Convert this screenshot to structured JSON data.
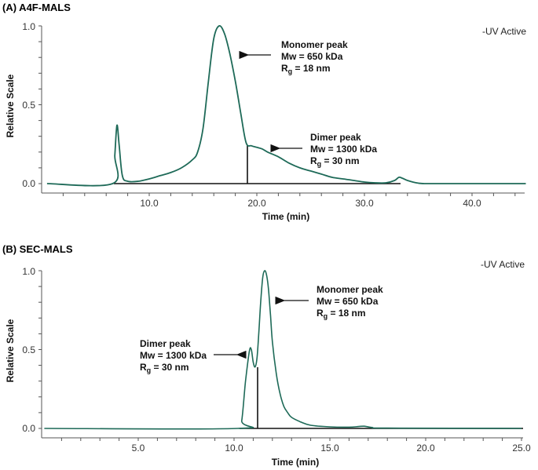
{
  "chart_data": [
    {
      "type": "line",
      "title": "(A) A4F-MALS",
      "xlabel": "Time (min)",
      "ylabel": "Relative Scale",
      "xlim": [
        0,
        45
      ],
      "ylim": [
        0,
        1.0
      ],
      "xticks": [
        "10.0",
        "20.0",
        "30.0",
        "40.0"
      ],
      "yticks": [
        "0.0",
        "0.5",
        "1.0"
      ],
      "grid": false,
      "legend": "-UV Active",
      "line_color": "#1e6a58",
      "series": [
        {
          "name": "Relative Scale",
          "x": [
            0.5,
            6.6,
            6.8,
            7.0,
            7.2,
            7.5,
            8.0,
            9.0,
            10.0,
            11.0,
            12.0,
            13.0,
            14.0,
            14.5,
            15.0,
            15.5,
            16.0,
            16.5,
            17.0,
            17.5,
            18.0,
            18.5,
            19.0,
            19.5,
            20.0,
            20.5,
            21.0,
            22.0,
            23.0,
            24.0,
            25.0,
            26.0,
            27.0,
            28.0,
            29.0,
            30.0,
            31.0,
            32.0,
            32.8,
            33.2,
            33.5,
            34.0,
            35.0,
            36.0,
            40.0,
            45.0
          ],
          "y": [
            0.0,
            0.0,
            0.18,
            0.37,
            0.25,
            0.05,
            0.015,
            0.015,
            0.03,
            0.05,
            0.07,
            0.1,
            0.15,
            0.2,
            0.35,
            0.65,
            0.92,
            1.0,
            0.95,
            0.82,
            0.65,
            0.45,
            0.26,
            0.24,
            0.23,
            0.22,
            0.2,
            0.17,
            0.13,
            0.1,
            0.08,
            0.06,
            0.04,
            0.03,
            0.02,
            0.01,
            0.005,
            0.005,
            0.02,
            0.04,
            0.035,
            0.02,
            0.003,
            0.0,
            0.0,
            0.0
          ]
        }
      ],
      "annotations": [
        {
          "lines": [
            "Monomer peak",
            "Mw = 650 kDa",
            "Rg = 18 nm"
          ],
          "arrow_to_time": 18.5,
          "arrow_to_y": 0.81
        },
        {
          "lines": [
            "Dimer peak",
            "Mw = 1300 kDa",
            "Rg = 30 nm"
          ],
          "arrow_to_time": 21.0,
          "arrow_to_y": 0.23
        },
        {
          "type": "vertical_line",
          "time": 19.1,
          "y_top": 0.245
        }
      ]
    },
    {
      "type": "line",
      "title": "(B) SEC-MALS",
      "xlabel": "Time (min)",
      "ylabel": "Relative Scale",
      "xlim": [
        0,
        25
      ],
      "ylim": [
        0,
        1.0
      ],
      "xticks": [
        "5.0",
        "10.0",
        "15.0",
        "20.0",
        "25.0"
      ],
      "yticks": [
        "0.0",
        "0.5",
        "1.0"
      ],
      "grid": false,
      "legend": "-UV Active",
      "line_color": "#1e6a58",
      "series": [
        {
          "name": "Relative Scale",
          "x": [
            0.1,
            10.2,
            10.4,
            10.6,
            10.8,
            10.9,
            11.0,
            11.1,
            11.2,
            11.3,
            11.4,
            11.5,
            11.6,
            11.7,
            11.8,
            11.9,
            12.0,
            12.2,
            12.4,
            12.6,
            12.8,
            13.0,
            13.5,
            14.0,
            15.0,
            16.0,
            16.5,
            16.8,
            17.2,
            18.0,
            25.0
          ],
          "y": [
            0.0,
            0.0,
            0.05,
            0.3,
            0.49,
            0.5,
            0.42,
            0.39,
            0.45,
            0.62,
            0.82,
            0.96,
            1.0,
            0.97,
            0.88,
            0.72,
            0.55,
            0.35,
            0.22,
            0.14,
            0.1,
            0.07,
            0.04,
            0.02,
            0.01,
            0.008,
            0.012,
            0.014,
            0.006,
            0.002,
            0.0
          ]
        }
      ],
      "annotations": [
        {
          "lines": [
            "Monomer peak",
            "Mw = 650 kDa",
            "Rg = 18 nm"
          ],
          "arrow_to_time": 11.8,
          "arrow_to_y": 0.83
        },
        {
          "lines": [
            "Dimer peak",
            "Mw = 1300 kDa",
            "Rg = 30 nm"
          ],
          "arrow_to_time": 10.7,
          "arrow_to_y": 0.48
        },
        {
          "type": "vertical_line",
          "time": 11.1,
          "y_top": 0.39
        }
      ]
    }
  ],
  "panels": {
    "a": {
      "title": "(A) A4F-MALS",
      "ylabel": "Relative Scale",
      "xlabel": "Time (min)",
      "legend": "-UV Active",
      "yticks": [
        "1.0",
        "0.5",
        "0.0"
      ],
      "xticks": [
        "10.0",
        "20.0",
        "30.0",
        "40.0"
      ],
      "monomer": {
        "l1": "Monomer peak",
        "l2": "Mw = 650 kDa",
        "l3_main": "R",
        "l3_sub": "g",
        "l3_rest": " = 18 nm"
      },
      "dimer": {
        "l1": "Dimer peak",
        "l2": "Mw = 1300 kDa",
        "l3_main": "R",
        "l3_sub": "g",
        "l3_rest": " = 30 nm"
      }
    },
    "b": {
      "title": "(B) SEC-MALS",
      "ylabel": "Relative Scale",
      "xlabel": "Time (min)",
      "legend": "-UV Active",
      "yticks": [
        "1.0",
        "0.5",
        "0.0"
      ],
      "xticks": [
        "5.0",
        "10.0",
        "15.0",
        "20.0",
        "25.0"
      ],
      "monomer": {
        "l1": "Monomer peak",
        "l2": "Mw = 650 kDa",
        "l3_main": "R",
        "l3_sub": "g",
        "l3_rest": " = 18 nm"
      },
      "dimer": {
        "l1": "Dimer peak",
        "l2": "Mw = 1300 kDa",
        "l3_main": "R",
        "l3_sub": "g",
        "l3_rest": " = 30 nm"
      }
    }
  }
}
